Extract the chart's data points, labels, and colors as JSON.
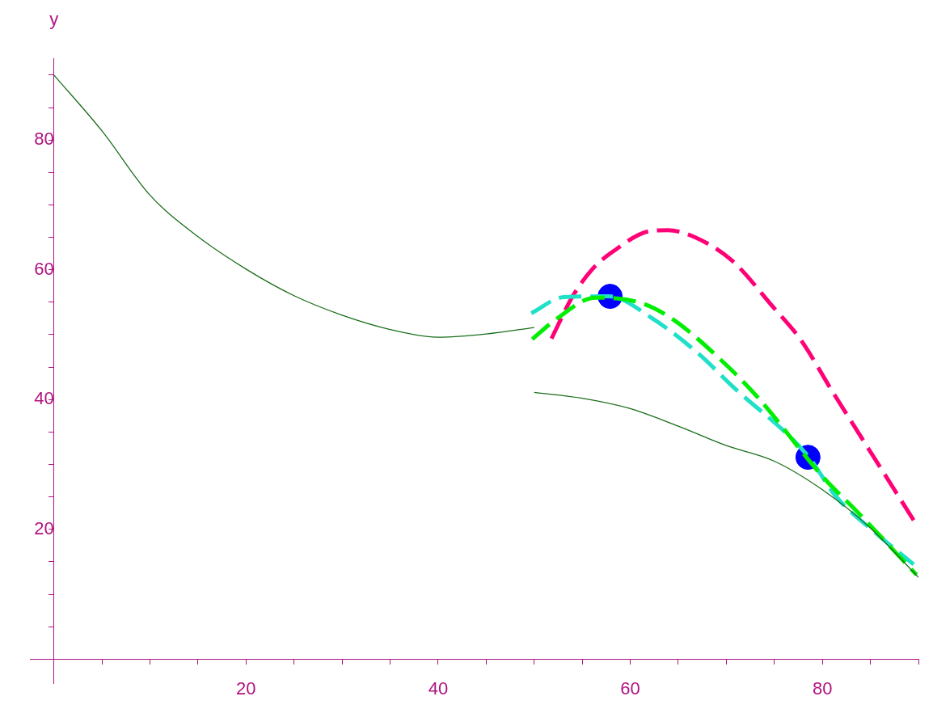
{
  "chart_data": {
    "type": "line",
    "ylabel": "y",
    "xlim": [
      -2.5,
      90
    ],
    "ylim": [
      -3.8,
      92.6
    ],
    "xticks": [
      {
        "value": 5,
        "label": null
      },
      {
        "value": 10,
        "label": null
      },
      {
        "value": 15,
        "label": null
      },
      20,
      {
        "value": 25,
        "label": null
      },
      {
        "value": 30,
        "label": null
      },
      {
        "value": 35,
        "label": null
      },
      40,
      {
        "value": 45,
        "label": null
      },
      {
        "value": 50,
        "label": null
      },
      {
        "value": 55,
        "label": null
      },
      60,
      {
        "value": 65,
        "label": null
      },
      {
        "value": 70,
        "label": null
      },
      {
        "value": 75,
        "label": null
      },
      80,
      {
        "value": 85,
        "label": null
      },
      {
        "value": 90,
        "label": null
      }
    ],
    "yticks": [
      {
        "value": 5,
        "label": null
      },
      {
        "value": 10,
        "label": null
      },
      {
        "value": 15,
        "label": null
      },
      20,
      {
        "value": 25,
        "label": null
      },
      {
        "value": 30,
        "label": null
      },
      {
        "value": 35,
        "label": null
      },
      40,
      {
        "value": 45,
        "label": null
      },
      {
        "value": 50,
        "label": null
      },
      {
        "value": 55,
        "label": null
      },
      60,
      {
        "value": 65,
        "label": null
      },
      {
        "value": 70,
        "label": null
      },
      {
        "value": 75,
        "label": null
      },
      80,
      {
        "value": 85,
        "label": null
      },
      {
        "value": 90,
        "label": null
      }
    ],
    "grid": false,
    "legend": false,
    "series": [
      {
        "color": "#1a6e1a",
        "line_style": "solid",
        "x": [
          0,
          5,
          10,
          15,
          20,
          25,
          30,
          35,
          40,
          45,
          50
        ],
        "values": [
          90,
          81.4,
          71.5,
          65.1,
          60.1,
          56,
          53,
          50.8,
          49.6,
          50.1,
          51.1
        ]
      },
      {
        "color": "#1a6e1a",
        "line_style": "solid",
        "x": [
          50,
          55,
          60,
          65,
          70,
          75,
          80,
          85,
          90
        ],
        "values": [
          41.1,
          40.2,
          38.6,
          35.9,
          32.9,
          30.5,
          26.1,
          20.2,
          12.6
        ]
      },
      {
        "color": "#00ee00",
        "line_style": "dashed",
        "x": [
          49.8,
          52.3,
          56.4,
          61.1,
          64.4,
          69.8,
          73.3,
          80.1,
          83.7,
          89.8
        ],
        "values": [
          49.3,
          52.4,
          55.7,
          54.9,
          52.4,
          45.6,
          40.3,
          28,
          22.6,
          13
        ]
      },
      {
        "color": "#20e0c8",
        "line_style": "dashed",
        "x": [
          49.7,
          53.1,
          57.8,
          62.2,
          67,
          70.6,
          78.5,
          81.4,
          85.9,
          89.5
        ],
        "values": [
          53.3,
          55.8,
          55.9,
          52.6,
          47.2,
          42.1,
          31.3,
          25.1,
          19,
          14.6
        ]
      },
      {
        "color": "#ff0077",
        "line_style": "dashed",
        "x": [
          51.8,
          54,
          56,
          58,
          62.2,
          63.9,
          66.6,
          70.6,
          74.9,
          77.7,
          81.1,
          83.7,
          89.5
        ],
        "values": [
          49.4,
          55.9,
          60,
          62.6,
          66,
          66.1,
          65.1,
          61.4,
          54.2,
          49.3,
          41.1,
          35,
          21.4
        ]
      },
      {
        "type": "scatter",
        "color": "#0000ff",
        "marker": "circle",
        "x": [
          57.9,
          78.5
        ],
        "values": [
          55.9,
          31.1
        ]
      }
    ]
  }
}
